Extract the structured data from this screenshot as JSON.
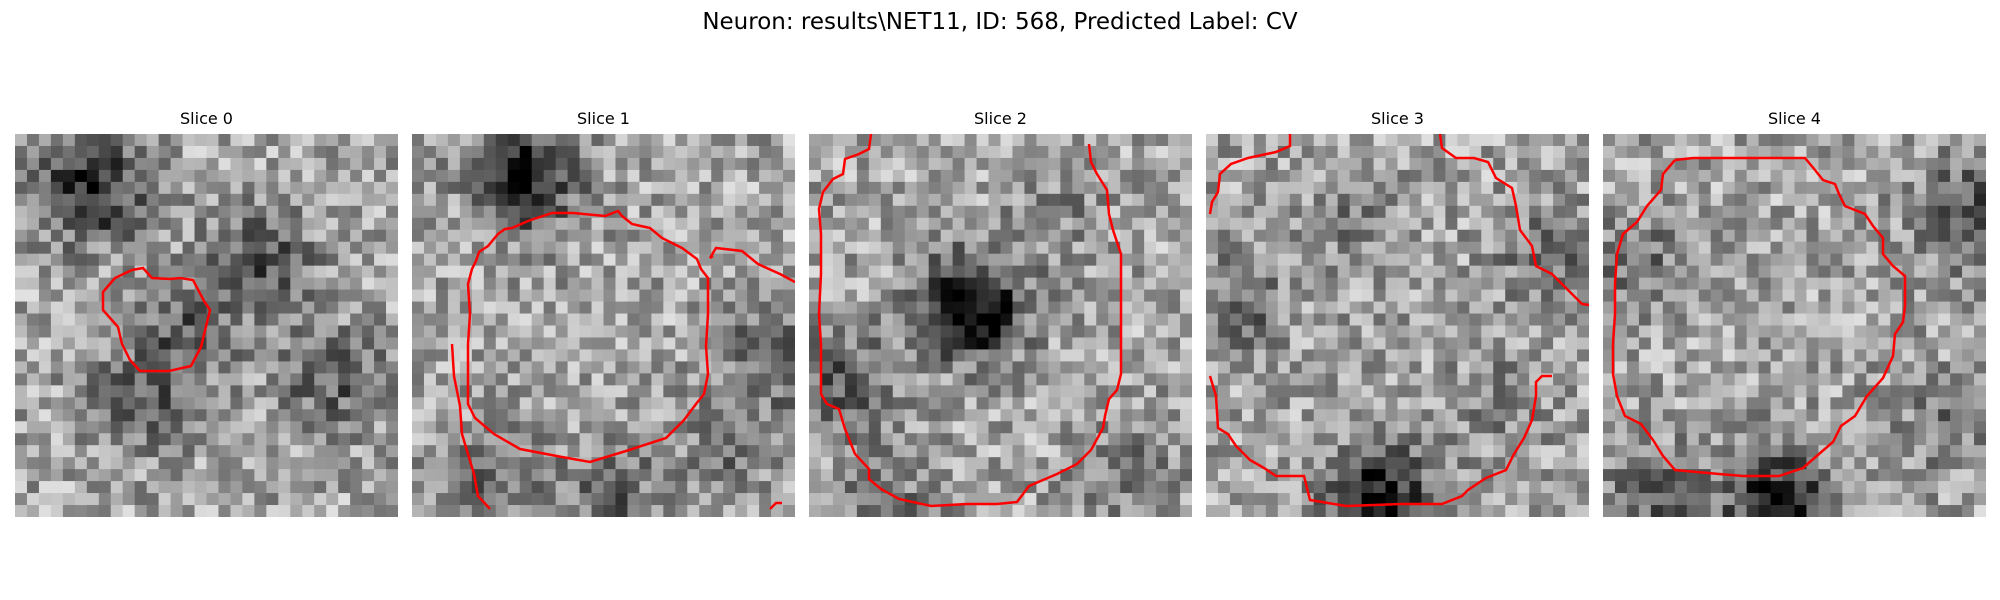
{
  "figure": {
    "title": "Neuron: results\\NET11, ID: 568, Predicted Label: CV"
  },
  "panels": [
    {
      "title": "Slice 0"
    },
    {
      "title": "Slice 1"
    },
    {
      "title": "Slice 2"
    },
    {
      "title": "Slice 3"
    },
    {
      "title": "Slice 4"
    }
  ],
  "colors": {
    "contour": "#ff0000",
    "background": "#ffffff"
  }
}
